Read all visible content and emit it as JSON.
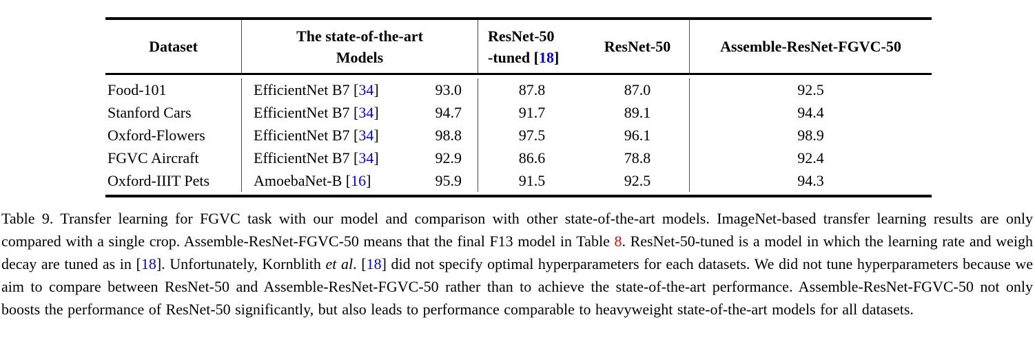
{
  "colors": {
    "background": "#ffffff",
    "text": "#000000",
    "citation_link_blue": "#0000ee",
    "table_ref_red": "#ee0000",
    "rule_black": "#000000",
    "column_separator_gray": "#4a4a4a"
  },
  "table": {
    "headers": {
      "dataset": "Dataset",
      "sota_line1": "The state-of-the-art",
      "sota_line2": "Models",
      "tuned_line1": "ResNet-50",
      "tuned_line2_pre": "-tuned [",
      "tuned_ref": "18",
      "tuned_line2_post": "]",
      "resnet50": "ResNet-50",
      "assemble": "Assemble-ResNet-FGVC-50"
    },
    "rows": [
      {
        "dataset": "Food-101",
        "model_pre": "EfficientNet B7 [",
        "model_ref": "34",
        "model_post": "]",
        "sota": "93.0",
        "tuned": "87.8",
        "resnet50": "87.0",
        "assemble": "92.5"
      },
      {
        "dataset": "Stanford Cars",
        "model_pre": "EfficientNet B7 [",
        "model_ref": "34",
        "model_post": "]",
        "sota": "94.7",
        "tuned": "91.7",
        "resnet50": "89.1",
        "assemble": "94.4"
      },
      {
        "dataset": "Oxford-Flowers",
        "model_pre": "EfficientNet B7 [",
        "model_ref": "34",
        "model_post": "]",
        "sota": "98.8",
        "tuned": "97.5",
        "resnet50": "96.1",
        "assemble": "98.9"
      },
      {
        "dataset": "FGVC Aircraft",
        "model_pre": "EfficientNet B7 [",
        "model_ref": "34",
        "model_post": "]",
        "sota": "92.9",
        "tuned": "86.6",
        "resnet50": "78.8",
        "assemble": "92.4"
      },
      {
        "dataset": "Oxford-IIIT Pets",
        "model_pre": "AmoebaNet-B [",
        "model_ref": "16",
        "model_post": "]",
        "sota": "95.9",
        "tuned": "91.5",
        "resnet50": "92.5",
        "assemble": "94.3"
      }
    ]
  },
  "caption": {
    "segments": [
      {
        "text": "Table 9. Transfer learning for FGVC task with our model and comparison with other state-of-the-art models. ImageNet-based transfer learning results are only compared with a single crop. Assemble-ResNet-FGVC-50 means that the final F13 model in Table ",
        "style": "normal"
      },
      {
        "text": "8",
        "style": "red"
      },
      {
        "text": ". ResNet-50-tuned is a model in which the learning rate and weigh decay are tuned as in [",
        "style": "normal"
      },
      {
        "text": "18",
        "style": "blue"
      },
      {
        "text": "]. Unfortunately, Kornblith ",
        "style": "normal"
      },
      {
        "text": "et al",
        "style": "italic"
      },
      {
        "text": ". [",
        "style": "normal"
      },
      {
        "text": "18",
        "style": "blue"
      },
      {
        "text": "] did not specify optimal hyperparameters for each datasets. We did not tune hyperparameters because we aim to compare between ResNet-50 and Assemble-ResNet-FGVC-50 rather than to achieve the state-of-the-art performance. Assemble-ResNet-FGVC-50 not only boosts the performance of ResNet-50 significantly, but also leads to performance comparable to heavyweight state-of-the-art models for all datasets.",
        "style": "normal"
      }
    ]
  }
}
